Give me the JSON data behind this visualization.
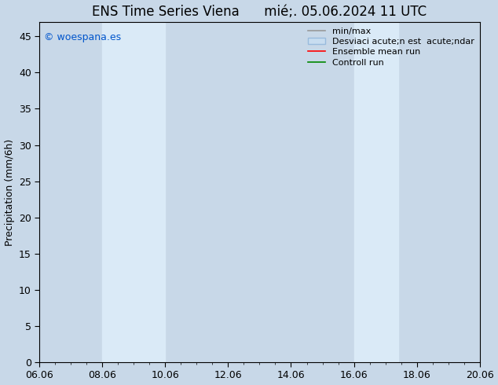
{
  "title": "ENS Time Series Viena      mié;. 05.06.2024 11 UTC",
  "ylabel": "Precipitation (mm/6h)",
  "xlabel": "",
  "ylim": [
    0,
    47
  ],
  "yticks": [
    0,
    5,
    10,
    15,
    20,
    25,
    30,
    35,
    40,
    45
  ],
  "xtick_labels": [
    "06.06",
    "08.06",
    "10.06",
    "12.06",
    "14.06",
    "16.06",
    "18.06",
    "20.06"
  ],
  "xtick_positions": [
    0,
    2,
    4,
    6,
    8,
    10,
    12,
    14
  ],
  "x_min": 0,
  "x_max": 14,
  "shaded_regions": [
    {
      "x_start": 2.0,
      "x_end": 4.0
    },
    {
      "x_start": 10.0,
      "x_end": 11.4
    }
  ],
  "shade_color": "#daeaf7",
  "background_color": "#c8d8e8",
  "plot_bg_color": "#c8d8e8",
  "watermark": "© woespana.es",
  "watermark_color": "#0055cc",
  "legend_entries": [
    {
      "label": "min/max",
      "color": "#888888"
    },
    {
      "label": "Desviaci acute;n est  acute;ndar",
      "color": "#aaccee"
    },
    {
      "label": "Ensemble mean run",
      "color": "#ff0000"
    },
    {
      "label": "Controll run",
      "color": "#008800"
    }
  ],
  "title_fontsize": 12,
  "tick_fontsize": 9,
  "ylabel_fontsize": 9,
  "legend_fontsize": 8
}
